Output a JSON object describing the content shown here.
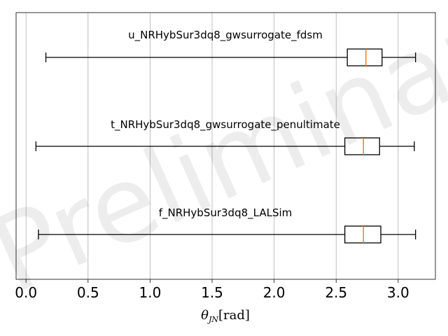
{
  "chart_data": {
    "type": "boxplot",
    "orientation": "horizontal",
    "xlabel": "θ_JN [rad]",
    "xlim": [
      -0.08,
      3.3
    ],
    "xticks": [
      0.0,
      0.5,
      1.0,
      1.5,
      2.0,
      2.5,
      3.0
    ],
    "xtick_labels": [
      "0.0",
      "0.5",
      "1.0",
      "1.5",
      "2.0",
      "2.5",
      "3.0"
    ],
    "grid": "vertical",
    "watermark": "Preliminary",
    "series": [
      {
        "name": "u_NRHybSur3dq8_gwsurrogate_fdsm",
        "whisker_low": 0.16,
        "q1": 2.59,
        "median": 2.74,
        "q3": 2.87,
        "whisker_high": 3.14
      },
      {
        "name": "t_NRHybSur3dq8_gwsurrogate_penultimate",
        "whisker_low": 0.08,
        "q1": 2.57,
        "median": 2.72,
        "q3": 2.85,
        "whisker_high": 3.13
      },
      {
        "name": "f_NRHybSur3dq8_LALSim",
        "whisker_low": 0.1,
        "q1": 2.57,
        "median": 2.72,
        "q3": 2.86,
        "whisker_high": 3.14
      }
    ],
    "colors": {
      "box": "#000000",
      "median": "#ff7f0e",
      "grid": "#b0b0b0"
    }
  }
}
